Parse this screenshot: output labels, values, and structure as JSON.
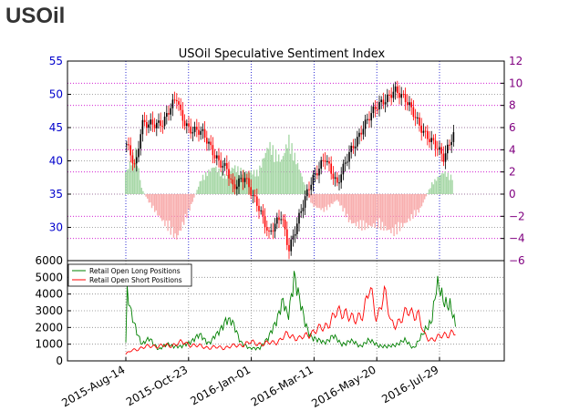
{
  "page": {
    "symbol": "USOil"
  },
  "colors": {
    "price_up": "#000000",
    "price_down": "#ff0000",
    "sentiment_positive": "#9fd49f",
    "sentiment_negative": "#f7a6a6",
    "left_axis": "#0000cc",
    "right_axis": "#800080",
    "long_line": "#008000",
    "short_line": "#ff0000",
    "vgrid": "#0000cc",
    "hgrid": "#cc00cc"
  },
  "chart_data": [
    {
      "type": "candlestick",
      "title": "USOil Speculative Sentiment Index",
      "x_tick_labels": [
        "2015-Aug-14",
        "2015-Oct-23",
        "2016-Jan-01",
        "2016-Mar-11",
        "2016-May-20",
        "2016-Jul-29"
      ],
      "ylim_left": [
        25,
        55
      ],
      "yticks_left": [
        30,
        35,
        40,
        45,
        50,
        55
      ],
      "ylim_right": [
        -6,
        12
      ],
      "yticks_right": [
        -6,
        -4,
        -2,
        0,
        2,
        4,
        6,
        8,
        10,
        12
      ],
      "grid": true,
      "price_series_approx": [
        [
          "2015-08-14",
          42.5
        ],
        [
          "2015-08-24",
          38.5
        ],
        [
          "2015-08-31",
          45.5
        ],
        [
          "2015-09-10",
          46.0
        ],
        [
          "2015-09-24",
          45.5
        ],
        [
          "2015-10-09",
          49.5
        ],
        [
          "2015-10-14",
          47.0
        ],
        [
          "2015-10-23",
          45.0
        ],
        [
          "2015-11-06",
          44.0
        ],
        [
          "2015-11-20",
          41.0
        ],
        [
          "2015-12-04",
          39.0
        ],
        [
          "2015-12-11",
          35.5
        ],
        [
          "2015-12-24",
          37.5
        ],
        [
          "2016-01-08",
          33.5
        ],
        [
          "2016-01-20",
          28.5
        ],
        [
          "2016-02-03",
          32.0
        ],
        [
          "2016-02-11",
          27.0
        ],
        [
          "2016-02-24",
          32.0
        ],
        [
          "2016-03-08",
          37.0
        ],
        [
          "2016-03-22",
          41.0
        ],
        [
          "2016-04-05",
          36.0
        ],
        [
          "2016-04-19",
          41.5
        ],
        [
          "2016-05-03",
          45.0
        ],
        [
          "2016-05-20",
          48.0
        ],
        [
          "2016-06-08",
          51.0
        ],
        [
          "2016-06-22",
          48.5
        ],
        [
          "2016-07-06",
          45.5
        ],
        [
          "2016-07-20",
          43.0
        ],
        [
          "2016-08-02",
          40.0
        ],
        [
          "2016-08-12",
          44.0
        ],
        [
          "2016-08-19",
          45.5
        ]
      ],
      "sentiment_series_approx": [
        [
          "2015-08-14",
          2.0
        ],
        [
          "2015-08-24",
          4.0
        ],
        [
          "2015-08-31",
          0.5
        ],
        [
          "2015-09-10",
          -1.0
        ],
        [
          "2015-09-24",
          -2.5
        ],
        [
          "2015-10-09",
          -4.0
        ],
        [
          "2015-10-23",
          -1.5
        ],
        [
          "2015-11-06",
          1.5
        ],
        [
          "2015-11-20",
          2.5
        ],
        [
          "2015-12-04",
          1.5
        ],
        [
          "2015-12-11",
          2.5
        ],
        [
          "2015-12-24",
          2.0
        ],
        [
          "2016-01-08",
          2.0
        ],
        [
          "2016-01-20",
          4.5
        ],
        [
          "2016-02-03",
          3.0
        ],
        [
          "2016-02-11",
          5.0
        ],
        [
          "2016-02-24",
          2.0
        ],
        [
          "2016-03-08",
          -1.0
        ],
        [
          "2016-03-22",
          -1.5
        ],
        [
          "2016-04-05",
          -0.5
        ],
        [
          "2016-04-19",
          -2.5
        ],
        [
          "2016-05-03",
          -3.0
        ],
        [
          "2016-05-20",
          -2.8
        ],
        [
          "2016-06-08",
          -3.5
        ],
        [
          "2016-06-22",
          -2.5
        ],
        [
          "2016-07-06",
          -1.5
        ],
        [
          "2016-07-20",
          1.0
        ],
        [
          "2016-08-02",
          2.0
        ],
        [
          "2016-08-12",
          1.5
        ],
        [
          "2016-08-19",
          -0.8
        ]
      ]
    },
    {
      "type": "line",
      "ylim": [
        0,
        6000
      ],
      "yticks": [
        0,
        1000,
        2000,
        3000,
        4000,
        5000,
        6000
      ],
      "legend_placement": "top-left",
      "grid": true,
      "series": [
        {
          "name": "Retail Open Long Positions",
          "color": "#008000",
          "points_approx": [
            [
              "2015-08-14",
              1100
            ],
            [
              "2015-08-15",
              4100
            ],
            [
              "2015-08-20",
              2700
            ],
            [
              "2015-08-25",
              2000
            ],
            [
              "2015-09-01",
              1000
            ],
            [
              "2015-09-10",
              1300
            ],
            [
              "2015-09-20",
              700
            ],
            [
              "2015-10-01",
              1000
            ],
            [
              "2015-10-15",
              800
            ],
            [
              "2015-10-25",
              1200
            ],
            [
              "2015-11-05",
              1500
            ],
            [
              "2015-11-15",
              1100
            ],
            [
              "2015-11-25",
              1600
            ],
            [
              "2015-12-04",
              2600
            ],
            [
              "2015-12-11",
              2200
            ],
            [
              "2015-12-20",
              1200
            ],
            [
              "2015-12-30",
              700
            ],
            [
              "2016-01-10",
              800
            ],
            [
              "2016-01-20",
              1300
            ],
            [
              "2016-01-28",
              2400
            ],
            [
              "2016-02-05",
              3500
            ],
            [
              "2016-02-11",
              2500
            ],
            [
              "2016-02-18",
              5400
            ],
            [
              "2016-02-24",
              3500
            ],
            [
              "2016-03-01",
              2200
            ],
            [
              "2016-03-08",
              1500
            ],
            [
              "2016-03-15",
              1200
            ],
            [
              "2016-03-22",
              1100
            ],
            [
              "2016-04-01",
              1500
            ],
            [
              "2016-04-10",
              1000
            ],
            [
              "2016-04-20",
              1200
            ],
            [
              "2016-05-01",
              900
            ],
            [
              "2016-05-10",
              1200
            ],
            [
              "2016-05-20",
              1000
            ],
            [
              "2016-06-01",
              800
            ],
            [
              "2016-06-10",
              1000
            ],
            [
              "2016-06-20",
              1200
            ],
            [
              "2016-06-30",
              800
            ],
            [
              "2016-07-10",
              1500
            ],
            [
              "2016-07-20",
              2500
            ],
            [
              "2016-07-26",
              4500
            ],
            [
              "2016-08-02",
              3600
            ],
            [
              "2016-08-10",
              3500
            ],
            [
              "2016-08-17",
              1700
            ]
          ]
        },
        {
          "name": "Retail Open Short Positions",
          "color": "#ff0000",
          "points_approx": [
            [
              "2015-08-14",
              400
            ],
            [
              "2015-08-20",
              600
            ],
            [
              "2015-09-01",
              800
            ],
            [
              "2015-09-15",
              900
            ],
            [
              "2015-10-01",
              900
            ],
            [
              "2015-10-15",
              1100
            ],
            [
              "2015-11-01",
              900
            ],
            [
              "2015-11-15",
              800
            ],
            [
              "2015-12-01",
              800
            ],
            [
              "2015-12-15",
              900
            ],
            [
              "2016-01-01",
              1100
            ],
            [
              "2016-01-15",
              1000
            ],
            [
              "2016-02-01",
              1200
            ],
            [
              "2016-02-11",
              1600
            ],
            [
              "2016-02-24",
              1300
            ],
            [
              "2016-03-08",
              1700
            ],
            [
              "2016-03-22",
              2000
            ],
            [
              "2016-04-05",
              2800
            ],
            [
              "2016-04-15",
              3000
            ],
            [
              "2016-04-25",
              2300
            ],
            [
              "2016-05-05",
              3000
            ],
            [
              "2016-05-12",
              4300
            ],
            [
              "2016-05-20",
              2500
            ],
            [
              "2016-05-28",
              4200
            ],
            [
              "2016-06-05",
              2200
            ],
            [
              "2016-06-15",
              2400
            ],
            [
              "2016-06-25",
              3000
            ],
            [
              "2016-07-05",
              2800
            ],
            [
              "2016-07-12",
              1500
            ],
            [
              "2016-07-20",
              1300
            ],
            [
              "2016-07-29",
              1400
            ],
            [
              "2016-08-05",
              1600
            ],
            [
              "2016-08-12",
              1700
            ],
            [
              "2016-08-17",
              1600
            ]
          ]
        }
      ]
    }
  ]
}
